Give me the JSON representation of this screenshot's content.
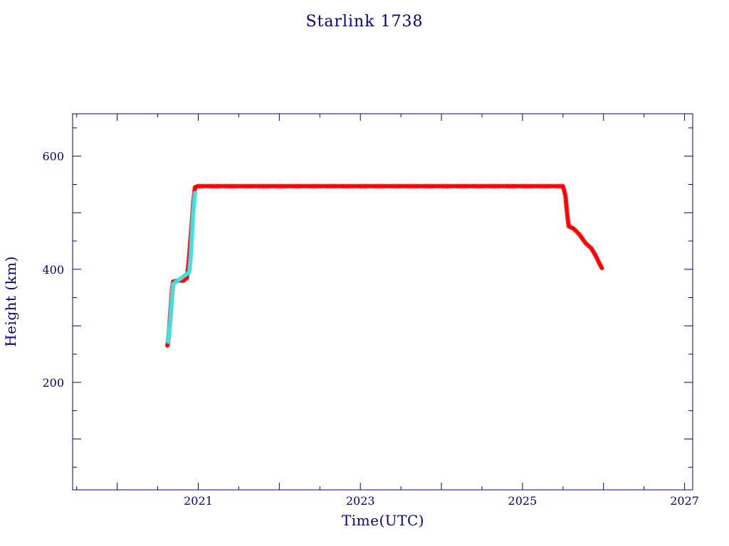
{
  "chart_data": {
    "type": "scatter",
    "title": "Starlink 1738",
    "xlabel": "Time(UTC)",
    "ylabel": "Height (km)",
    "xlim": [
      2019.45,
      2027.1
    ],
    "ylim": [
      10,
      675
    ],
    "x_ticks": [
      "2021",
      "2023",
      "2025",
      "2027"
    ],
    "y_ticks": [
      "200",
      "400",
      "600"
    ],
    "grid": false,
    "legend": false,
    "colors": {
      "axes": "#00008b",
      "series_primary": "#ff0000",
      "series_secondary": "#40e0e0"
    },
    "series": [
      {
        "marker": "asterisk",
        "color": "#ff0000",
        "points": [
          [
            2020.62,
            265
          ],
          [
            2020.63,
            275
          ],
          [
            2020.64,
            290
          ],
          [
            2020.65,
            310
          ],
          [
            2020.66,
            330
          ],
          [
            2020.67,
            350
          ],
          [
            2020.68,
            368
          ],
          [
            2020.69,
            378
          ],
          [
            2020.75,
            380
          ],
          [
            2020.82,
            380
          ],
          [
            2020.86,
            385
          ],
          [
            2020.88,
            410
          ],
          [
            2020.9,
            445
          ],
          [
            2020.92,
            480
          ],
          [
            2020.94,
            520
          ],
          [
            2020.96,
            545
          ],
          [
            2021.0,
            547
          ],
          [
            2021.5,
            547
          ],
          [
            2022.0,
            547
          ],
          [
            2022.5,
            547
          ],
          [
            2023.0,
            547
          ],
          [
            2023.5,
            547
          ],
          [
            2024.0,
            547
          ],
          [
            2024.5,
            547
          ],
          [
            2025.0,
            547
          ],
          [
            2025.5,
            547
          ],
          [
            2025.53,
            530
          ],
          [
            2025.55,
            500
          ],
          [
            2025.57,
            476
          ],
          [
            2025.63,
            472
          ],
          [
            2025.7,
            462
          ],
          [
            2025.78,
            446
          ],
          [
            2025.85,
            437
          ],
          [
            2025.9,
            425
          ],
          [
            2025.95,
            410
          ],
          [
            2025.98,
            402
          ]
        ]
      },
      {
        "marker": "asterisk",
        "color": "#40e0e0",
        "points": [
          [
            2020.63,
            272
          ],
          [
            2020.65,
            300
          ],
          [
            2020.67,
            338
          ],
          [
            2020.69,
            374
          ],
          [
            2020.89,
            395
          ],
          [
            2020.91,
            428
          ],
          [
            2020.94,
            505
          ],
          [
            2020.96,
            535
          ]
        ]
      }
    ]
  }
}
